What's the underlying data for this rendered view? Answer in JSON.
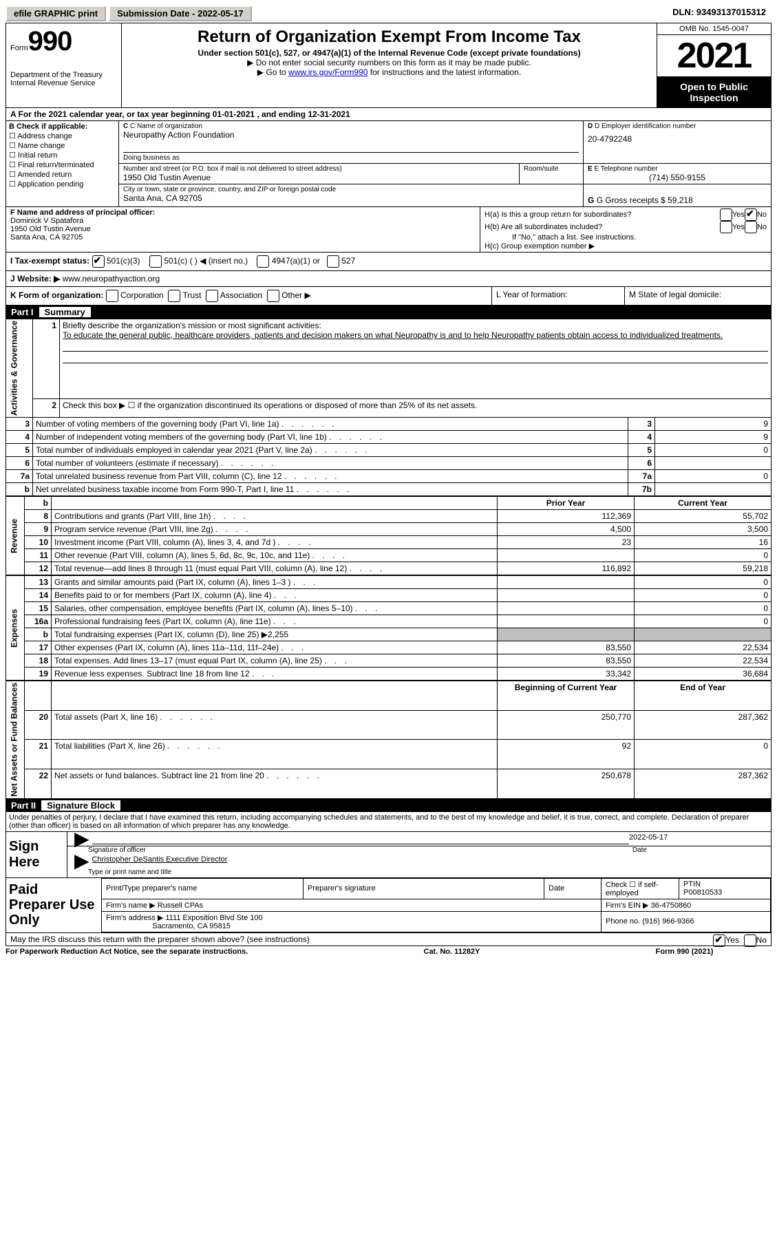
{
  "top": {
    "efile": "efile GRAPHIC print",
    "submission": "Submission Date - 2022-05-17",
    "dln": "DLN: 93493137015312"
  },
  "header": {
    "form_prefix": "Form",
    "form_number": "990",
    "dept": "Department of the Treasury",
    "irs": "Internal Revenue Service",
    "title": "Return of Organization Exempt From Income Tax",
    "sub1": "Under section 501(c), 527, or 4947(a)(1) of the Internal Revenue Code (except private foundations)",
    "sub2": "▶ Do not enter social security numbers on this form as it may be made public.",
    "sub3_pre": "▶ Go to ",
    "sub3_link": "www.irs.gov/Form990",
    "sub3_post": " for instructions and the latest information.",
    "omb": "OMB No. 1545-0047",
    "year": "2021",
    "open": "Open to Public Inspection"
  },
  "a": {
    "cal_year": "A For the 2021 calendar year, or tax year beginning 01-01-2021    , and ending 12-31-2021",
    "b_label": "B Check if applicable:",
    "checks": [
      "Address change",
      "Name change",
      "Initial return",
      "Final return/terminated",
      "Amended return",
      "Application pending"
    ],
    "c_label": "C Name of organization",
    "org_name": "Neuropathy Action Foundation",
    "dba_label": "Doing business as",
    "addr_label": "Number and street (or P.O. box if mail is not delivered to street address)",
    "room_label": "Room/suite",
    "addr": "1950 Old Tustin Avenue",
    "city_label": "City or town, state or province, country, and ZIP or foreign postal code",
    "city": "Santa Ana, CA  92705",
    "d_label": "D Employer identification number",
    "ein": "20-4792248",
    "e_label": "E Telephone number",
    "phone": "(714) 550-9155",
    "g_label": "G Gross receipts $",
    "gross": "59,218"
  },
  "f": {
    "label": "F Name and address of principal officer:",
    "name": "Dominick V Spatafora",
    "addr1": "1950 Old Tustin Avenue",
    "addr2": "Santa Ana, CA  92705"
  },
  "h": {
    "a_label": "H(a)  Is this a group return for subordinates?",
    "b_label": "H(b)  Are all subordinates included?",
    "b_note": "If \"No,\" attach a list. See instructions.",
    "c_label": "H(c)  Group exemption number ▶",
    "yes": "Yes",
    "no": "No"
  },
  "i": {
    "label": "I   Tax-exempt status:",
    "opts": [
      "501(c)(3)",
      "501(c) (  ) ◀ (insert no.)",
      "4947(a)(1) or",
      "527"
    ]
  },
  "j": {
    "label": "J   Website: ▶",
    "url": "www.neuropathyaction.org"
  },
  "k": {
    "label": "K Form of organization:",
    "opts": [
      "Corporation",
      "Trust",
      "Association",
      "Other ▶"
    ],
    "l_label": "L Year of formation:",
    "m_label": "M State of legal domicile:"
  },
  "part1": {
    "title": "Part I",
    "name": "Summary",
    "q1_label": "Briefly describe the organization's mission or most significant activities:",
    "q1_text": "To educate the general public, healthcare providers, patients and decision makers on what Neuropathy is and to help Neuropathy patients obtain access to individualized treatments.",
    "q2": "Check this box ▶ ☐ if the organization discontinued its operations or disposed of more than 25% of its net assets.",
    "rows_gov": [
      {
        "n": "3",
        "t": "Number of voting members of the governing body (Part VI, line 1a)",
        "box": "3",
        "v": "9"
      },
      {
        "n": "4",
        "t": "Number of independent voting members of the governing body (Part VI, line 1b)",
        "box": "4",
        "v": "9"
      },
      {
        "n": "5",
        "t": "Total number of individuals employed in calendar year 2021 (Part V, line 2a)",
        "box": "5",
        "v": "0"
      },
      {
        "n": "6",
        "t": "Total number of volunteers (estimate if necessary)",
        "box": "6",
        "v": ""
      },
      {
        "n": "7a",
        "t": "Total unrelated business revenue from Part VIII, column (C), line 12",
        "box": "7a",
        "v": "0"
      },
      {
        "n": "b",
        "t": "Net unrelated business taxable income from Form 990-T, Part I, line 11",
        "box": "7b",
        "v": ""
      }
    ],
    "col_prior": "Prior Year",
    "col_current": "Current Year",
    "rows_rev": [
      {
        "n": "8",
        "t": "Contributions and grants (Part VIII, line 1h)",
        "p": "112,369",
        "c": "55,702"
      },
      {
        "n": "9",
        "t": "Program service revenue (Part VIII, line 2g)",
        "p": "4,500",
        "c": "3,500"
      },
      {
        "n": "10",
        "t": "Investment income (Part VIII, column (A), lines 3, 4, and 7d )",
        "p": "23",
        "c": "16"
      },
      {
        "n": "11",
        "t": "Other revenue (Part VIII, column (A), lines 5, 6d, 8c, 9c, 10c, and 11e)",
        "p": "",
        "c": "0"
      },
      {
        "n": "12",
        "t": "Total revenue—add lines 8 through 11 (must equal Part VIII, column (A), line 12)",
        "p": "116,892",
        "c": "59,218"
      }
    ],
    "rows_exp": [
      {
        "n": "13",
        "t": "Grants and similar amounts paid (Part IX, column (A), lines 1–3 )",
        "p": "",
        "c": "0"
      },
      {
        "n": "14",
        "t": "Benefits paid to or for members (Part IX, column (A), line 4)",
        "p": "",
        "c": "0"
      },
      {
        "n": "15",
        "t": "Salaries, other compensation, employee benefits (Part IX, column (A), lines 5–10)",
        "p": "",
        "c": "0"
      },
      {
        "n": "16a",
        "t": "Professional fundraising fees (Part IX, column (A), line 11e)",
        "p": "",
        "c": "0"
      },
      {
        "n": "b",
        "t": "Total fundraising expenses (Part IX, column (D), line 25) ▶2,255",
        "p": "GREY",
        "c": "GREY"
      },
      {
        "n": "17",
        "t": "Other expenses (Part IX, column (A), lines 11a–11d, 11f–24e)",
        "p": "83,550",
        "c": "22,534"
      },
      {
        "n": "18",
        "t": "Total expenses. Add lines 13–17 (must equal Part IX, column (A), line 25)",
        "p": "83,550",
        "c": "22,534"
      },
      {
        "n": "19",
        "t": "Revenue less expenses. Subtract line 18 from line 12",
        "p": "33,342",
        "c": "36,684"
      }
    ],
    "col_begin": "Beginning of Current Year",
    "col_end": "End of Year",
    "rows_net": [
      {
        "n": "20",
        "t": "Total assets (Part X, line 16)",
        "p": "250,770",
        "c": "287,362"
      },
      {
        "n": "21",
        "t": "Total liabilities (Part X, line 26)",
        "p": "92",
        "c": "0"
      },
      {
        "n": "22",
        "t": "Net assets or fund balances. Subtract line 21 from line 20",
        "p": "250,678",
        "c": "287,362"
      }
    ],
    "side_gov": "Activities & Governance",
    "side_rev": "Revenue",
    "side_exp": "Expenses",
    "side_net": "Net Assets or Fund Balances"
  },
  "part2": {
    "title": "Part II",
    "name": "Signature Block",
    "decl": "Under penalties of perjury, I declare that I have examined this return, including accompanying schedules and statements, and to the best of my knowledge and belief, it is true, correct, and complete. Declaration of preparer (other than officer) is based on all information of which preparer has any knowledge.",
    "sign_here": "Sign Here",
    "sig_officer": "Signature of officer",
    "date_label": "Date",
    "sig_date": "2022-05-17",
    "officer_name": "Christopher DeSantis  Executive Director",
    "type_name": "Type or print name and title",
    "paid_label": "Paid Preparer Use Only",
    "prep_name_label": "Print/Type preparer's name",
    "prep_sig_label": "Preparer's signature",
    "check_if": "Check ☐ if self-employed",
    "ptin_label": "PTIN",
    "ptin": "P00810533",
    "firm_name_label": "Firm's name    ▶",
    "firm_name": "Russell CPAs",
    "firm_ein_label": "Firm's EIN ▶",
    "firm_ein": "36-4750860",
    "firm_addr_label": "Firm's address ▶",
    "firm_addr": "1111 Exposition Blvd Ste 100",
    "firm_city": "Sacramento, CA  95815",
    "phone_label": "Phone no.",
    "firm_phone": "(916) 966-9366",
    "discuss": "May the IRS discuss this return with the preparer shown above? (see instructions)"
  },
  "footer": {
    "left": "For Paperwork Reduction Act Notice, see the separate instructions.",
    "mid": "Cat. No. 11282Y",
    "right": "Form 990 (2021)"
  }
}
